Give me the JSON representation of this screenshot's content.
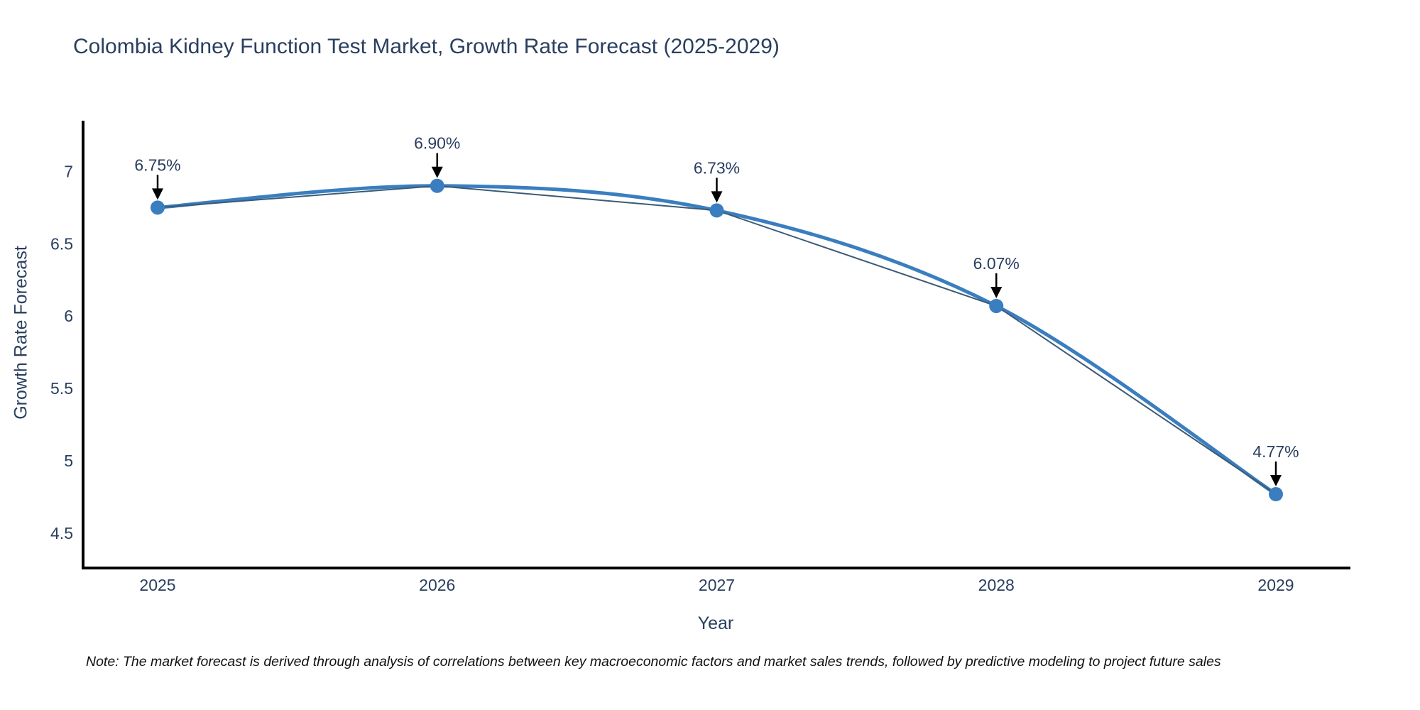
{
  "chart_data": {
    "type": "line",
    "title": "Colombia Kidney Function Test Market, Growth Rate Forecast (2025-2029)",
    "xlabel": "Year",
    "ylabel": "Growth Rate Forecast",
    "x": [
      2025,
      2026,
      2027,
      2028,
      2029
    ],
    "series": [
      {
        "name": "Growth Rate Forecast",
        "values": [
          6.75,
          6.9,
          6.73,
          6.07,
          4.77
        ]
      }
    ],
    "point_labels": [
      "6.75%",
      "6.90%",
      "6.73%",
      "6.07%",
      "4.77%"
    ],
    "ytick_labels": [
      "7",
      "6.5",
      "6",
      "5.5",
      "5",
      "4.5"
    ],
    "ytick_values": [
      7,
      6.5,
      6,
      5.5,
      5,
      4.5
    ],
    "xtick_labels": [
      "2025",
      "2026",
      "2027",
      "2028",
      "2029"
    ],
    "ylim": [
      4.26,
      7.35
    ],
    "grid": false,
    "legend": "none",
    "line_shape": "spline",
    "colors": {
      "line": "#3a7ebf",
      "line_core": "#3c5a75",
      "marker": "#3a7ebf",
      "axis": "#000000",
      "annotation_arrow": "#000000",
      "text": "#2a3f5f"
    }
  },
  "note": "Note: The market forecast is derived through analysis of correlations between key macroeconomic factors and market sales trends, followed by predictive modeling to project future sales"
}
